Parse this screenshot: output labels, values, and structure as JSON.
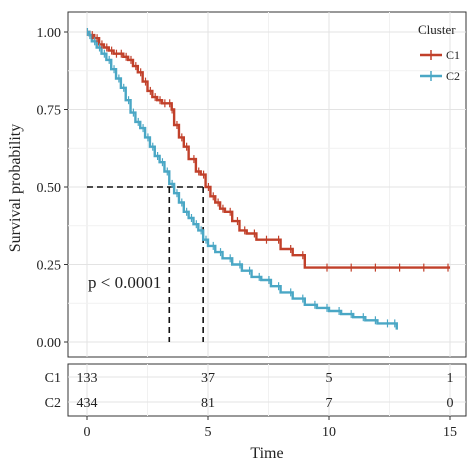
{
  "chart_data": {
    "type": "line",
    "xlabel": "Time",
    "ylabel": "Survival probability",
    "xlim": [
      0,
      15
    ],
    "ylim": [
      0,
      1
    ],
    "x_ticks": [
      "0",
      "5",
      "10",
      "15"
    ],
    "y_ticks": [
      "0.00",
      "0.25",
      "0.50",
      "0.75",
      "1.00"
    ],
    "grid": true,
    "legend": {
      "title": "Cluster",
      "position": "top-right"
    },
    "annotation": "p < 0.0001",
    "median_survival": [
      {
        "series": "C1",
        "time": 4.8,
        "probability": 0.5
      },
      {
        "series": "C2",
        "time": 3.4,
        "probability": 0.5
      }
    ],
    "series": [
      {
        "name": "C1",
        "color": "#c1402a",
        "x": [
          0,
          0.1,
          0.3,
          0.5,
          0.7,
          0.9,
          1.1,
          1.3,
          1.5,
          1.7,
          1.9,
          2.1,
          2.3,
          2.5,
          2.7,
          2.9,
          3.1,
          3.3,
          3.5,
          3.6,
          3.8,
          4.0,
          4.2,
          4.5,
          4.7,
          4.9,
          5.1,
          5.3,
          5.5,
          5.7,
          6.0,
          6.3,
          6.6,
          7.0,
          7.5,
          8.0,
          8.5,
          9.0,
          10,
          11,
          12,
          13,
          14,
          15
        ],
        "y": [
          1.0,
          0.99,
          0.98,
          0.96,
          0.95,
          0.94,
          0.93,
          0.93,
          0.92,
          0.91,
          0.89,
          0.87,
          0.84,
          0.81,
          0.79,
          0.78,
          0.77,
          0.77,
          0.75,
          0.7,
          0.66,
          0.63,
          0.59,
          0.55,
          0.54,
          0.5,
          0.47,
          0.45,
          0.43,
          0.42,
          0.39,
          0.36,
          0.35,
          0.33,
          0.33,
          0.3,
          0.28,
          0.24,
          0.24,
          0.24,
          0.24,
          0.24,
          0.24,
          0.24
        ]
      },
      {
        "name": "C2",
        "color": "#4aa7c5",
        "x": [
          0,
          0.1,
          0.2,
          0.4,
          0.6,
          0.8,
          1.0,
          1.2,
          1.4,
          1.6,
          1.8,
          2.0,
          2.2,
          2.4,
          2.6,
          2.8,
          3.0,
          3.2,
          3.4,
          3.6,
          3.8,
          4.0,
          4.2,
          4.4,
          4.6,
          4.8,
          5.0,
          5.3,
          5.6,
          6.0,
          6.4,
          6.8,
          7.2,
          7.6,
          8.0,
          8.5,
          9.0,
          9.5,
          10.0,
          10.5,
          11.0,
          11.5,
          12.0,
          12.5,
          12.8
        ],
        "y": [
          1.0,
          0.99,
          0.97,
          0.95,
          0.93,
          0.91,
          0.88,
          0.85,
          0.82,
          0.78,
          0.74,
          0.71,
          0.69,
          0.66,
          0.63,
          0.6,
          0.58,
          0.55,
          0.51,
          0.48,
          0.45,
          0.42,
          0.4,
          0.38,
          0.36,
          0.33,
          0.31,
          0.29,
          0.27,
          0.25,
          0.23,
          0.21,
          0.2,
          0.18,
          0.16,
          0.14,
          0.12,
          0.11,
          0.1,
          0.09,
          0.08,
          0.07,
          0.06,
          0.06,
          0.04
        ]
      }
    ],
    "risk_table": {
      "time_points": [
        0,
        5,
        10,
        15
      ],
      "rows": [
        {
          "label": "C1",
          "counts": [
            "133",
            "37",
            "5",
            "1"
          ]
        },
        {
          "label": "C2",
          "counts": [
            "434",
            "81",
            "7",
            "0"
          ]
        }
      ]
    }
  }
}
